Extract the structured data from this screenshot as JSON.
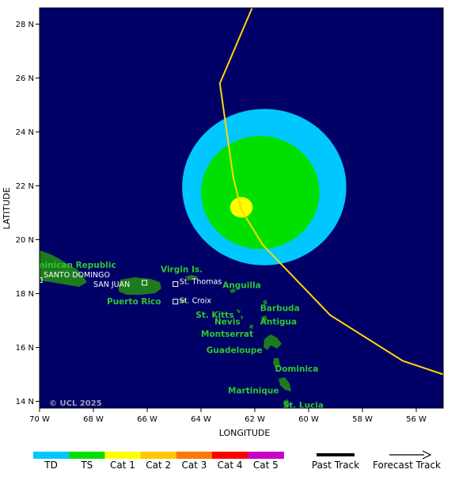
{
  "map": {
    "axes": {
      "xlabel": "LONGITUDE",
      "ylabel": "LATITUDE",
      "lon_ticks": [
        {
          "value": -70,
          "label": "70 W"
        },
        {
          "value": -68,
          "label": "68 W"
        },
        {
          "value": -66,
          "label": "66 W"
        },
        {
          "value": -64,
          "label": "64 W"
        },
        {
          "value": -62,
          "label": "62 W"
        },
        {
          "value": -60,
          "label": "60 W"
        },
        {
          "value": -58,
          "label": "58 W"
        },
        {
          "value": -56,
          "label": "56 W"
        }
      ],
      "lat_ticks": [
        {
          "value": 14,
          "label": "14 N"
        },
        {
          "value": 16,
          "label": "16 N"
        },
        {
          "value": 18,
          "label": "18 N"
        },
        {
          "value": 20,
          "label": "20 N"
        },
        {
          "value": 22,
          "label": "22 N"
        },
        {
          "value": 24,
          "label": "24 N"
        },
        {
          "value": 26,
          "label": "26 N"
        },
        {
          "value": 28,
          "label": "28 N"
        }
      ],
      "lon_range": [
        -70,
        -55
      ],
      "lat_range": [
        13.75,
        28.6
      ]
    },
    "colors": {
      "ocean": "#000066",
      "land": "#1e7a1e",
      "track": "#ffd700",
      "wind_td": "#00c8ff",
      "wind_ts": "#00e000",
      "wind_cat1": "#ffff00"
    },
    "track": [
      {
        "lon": -55.0,
        "lat": 15.0
      },
      {
        "lon": -56.5,
        "lat": 15.5
      },
      {
        "lon": -59.2,
        "lat": 17.2
      },
      {
        "lon": -61.7,
        "lat": 19.8
      },
      {
        "lon": -62.5,
        "lat": 21.1
      },
      {
        "lon": -62.8,
        "lat": 22.3
      },
      {
        "lon": -63.3,
        "lat": 25.8
      },
      {
        "lon": -62.1,
        "lat": 28.6
      }
    ],
    "wind_field": {
      "center": {
        "lon": -62.5,
        "lat": 21.2
      },
      "td": {
        "rx_deg": 3.05,
        "ry_deg": 2.9,
        "offset_lon": 0.85,
        "offset_lat": 0.75
      },
      "ts": {
        "rx_deg": 2.2,
        "ry_deg": 2.1,
        "offset_lon": 0.7,
        "offset_lat": 0.55
      },
      "cat1": {
        "rx_deg": 0.42,
        "ry_deg": 0.38,
        "offset_lon": 0.0,
        "offset_lat": 0.0
      }
    },
    "places_green": [
      {
        "name": "Dominican Republic",
        "lon": -70.6,
        "lat": 18.95
      },
      {
        "name": "Virgin Is.",
        "lon": -65.5,
        "lat": 18.8
      },
      {
        "name": "Puerto Rico",
        "lon": -67.5,
        "lat": 17.6
      },
      {
        "name": "Anguilla",
        "lon": -63.2,
        "lat": 18.2
      },
      {
        "name": "Barbuda",
        "lon": -61.8,
        "lat": 17.35
      },
      {
        "name": "St. Kitts",
        "lon": -64.2,
        "lat": 17.1
      },
      {
        "name": "Antigua",
        "lon": -61.8,
        "lat": 16.85
      },
      {
        "name": "Nevis",
        "lon": -63.5,
        "lat": 16.85
      },
      {
        "name": "Montserrat",
        "lon": -64.0,
        "lat": 16.4
      },
      {
        "name": "Guadeloupe",
        "lon": -63.8,
        "lat": 15.8
      },
      {
        "name": "Dominica",
        "lon": -61.25,
        "lat": 15.1
      },
      {
        "name": "Martinique",
        "lon": -63.0,
        "lat": 14.3
      },
      {
        "name": "St. Lucia",
        "lon": -60.95,
        "lat": 13.75
      }
    ],
    "places_white": [
      {
        "name": "SANTO DOMINGO",
        "lon": -69.85,
        "lat": 18.6
      },
      {
        "name": "SAN JUAN",
        "lon": -68.0,
        "lat": 18.25
      },
      {
        "name": "St. Thomas",
        "lon": -64.8,
        "lat": 18.35
      },
      {
        "name": "St. Croix",
        "lon": -64.8,
        "lat": 17.65
      }
    ],
    "city_markers": [
      {
        "name": "santo-domingo",
        "lon": -70.0,
        "lat": 18.5
      },
      {
        "name": "san-juan",
        "lon": -66.1,
        "lat": 18.4
      },
      {
        "name": "st-thomas",
        "lon": -64.95,
        "lat": 18.35
      },
      {
        "name": "st-croix",
        "lon": -64.95,
        "lat": 17.7
      }
    ],
    "credit": "© UCL 2025"
  },
  "legend": {
    "categories": [
      {
        "label": "TD",
        "color": "#00c8ff"
      },
      {
        "label": "TS",
        "color": "#00e000"
      },
      {
        "label": "Cat 1",
        "color": "#ffff00"
      },
      {
        "label": "Cat 2",
        "color": "#ffc800"
      },
      {
        "label": "Cat 3",
        "color": "#ff7800"
      },
      {
        "label": "Cat 4",
        "color": "#ff0000"
      },
      {
        "label": "Cat 5",
        "color": "#c800c8"
      }
    ],
    "past_track_label": "Past Track",
    "forecast_track_label": "Forecast Track"
  }
}
